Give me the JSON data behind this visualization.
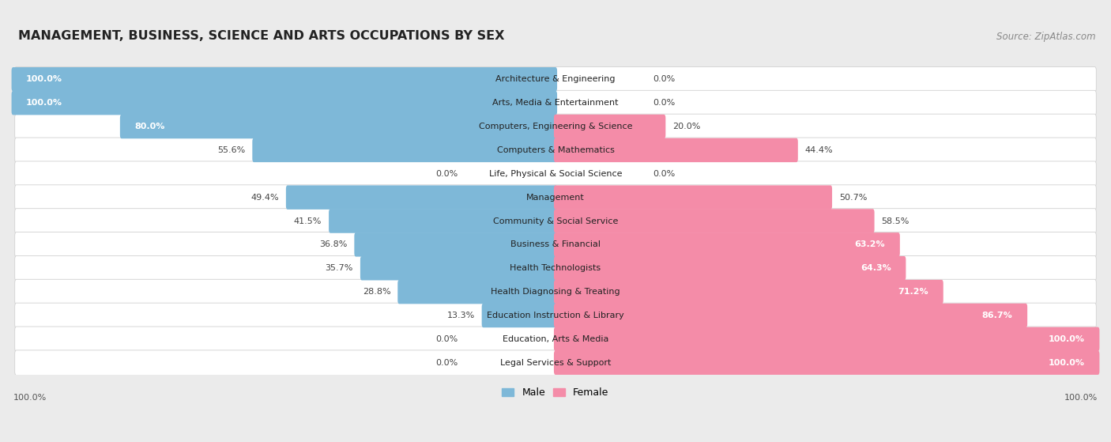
{
  "title": "MANAGEMENT, BUSINESS, SCIENCE AND ARTS OCCUPATIONS BY SEX",
  "source": "Source: ZipAtlas.com",
  "categories": [
    "Architecture & Engineering",
    "Arts, Media & Entertainment",
    "Computers, Engineering & Science",
    "Computers & Mathematics",
    "Life, Physical & Social Science",
    "Management",
    "Community & Social Service",
    "Business & Financial",
    "Health Technologists",
    "Health Diagnosing & Treating",
    "Education Instruction & Library",
    "Education, Arts & Media",
    "Legal Services & Support"
  ],
  "male": [
    100.0,
    100.0,
    80.0,
    55.6,
    0.0,
    49.4,
    41.5,
    36.8,
    35.7,
    28.8,
    13.3,
    0.0,
    0.0
  ],
  "female": [
    0.0,
    0.0,
    20.0,
    44.4,
    0.0,
    50.7,
    58.5,
    63.2,
    64.3,
    71.2,
    86.7,
    100.0,
    100.0
  ],
  "male_color": "#7eb8d8",
  "female_color": "#f48ca8",
  "bg_color": "#ebebeb",
  "bar_bg_color": "#ffffff",
  "row_bg_color": "#f7f7f7",
  "title_fontsize": 11.5,
  "source_fontsize": 8.5,
  "cat_label_fontsize": 8,
  "pct_label_fontsize": 8,
  "legend_fontsize": 9
}
